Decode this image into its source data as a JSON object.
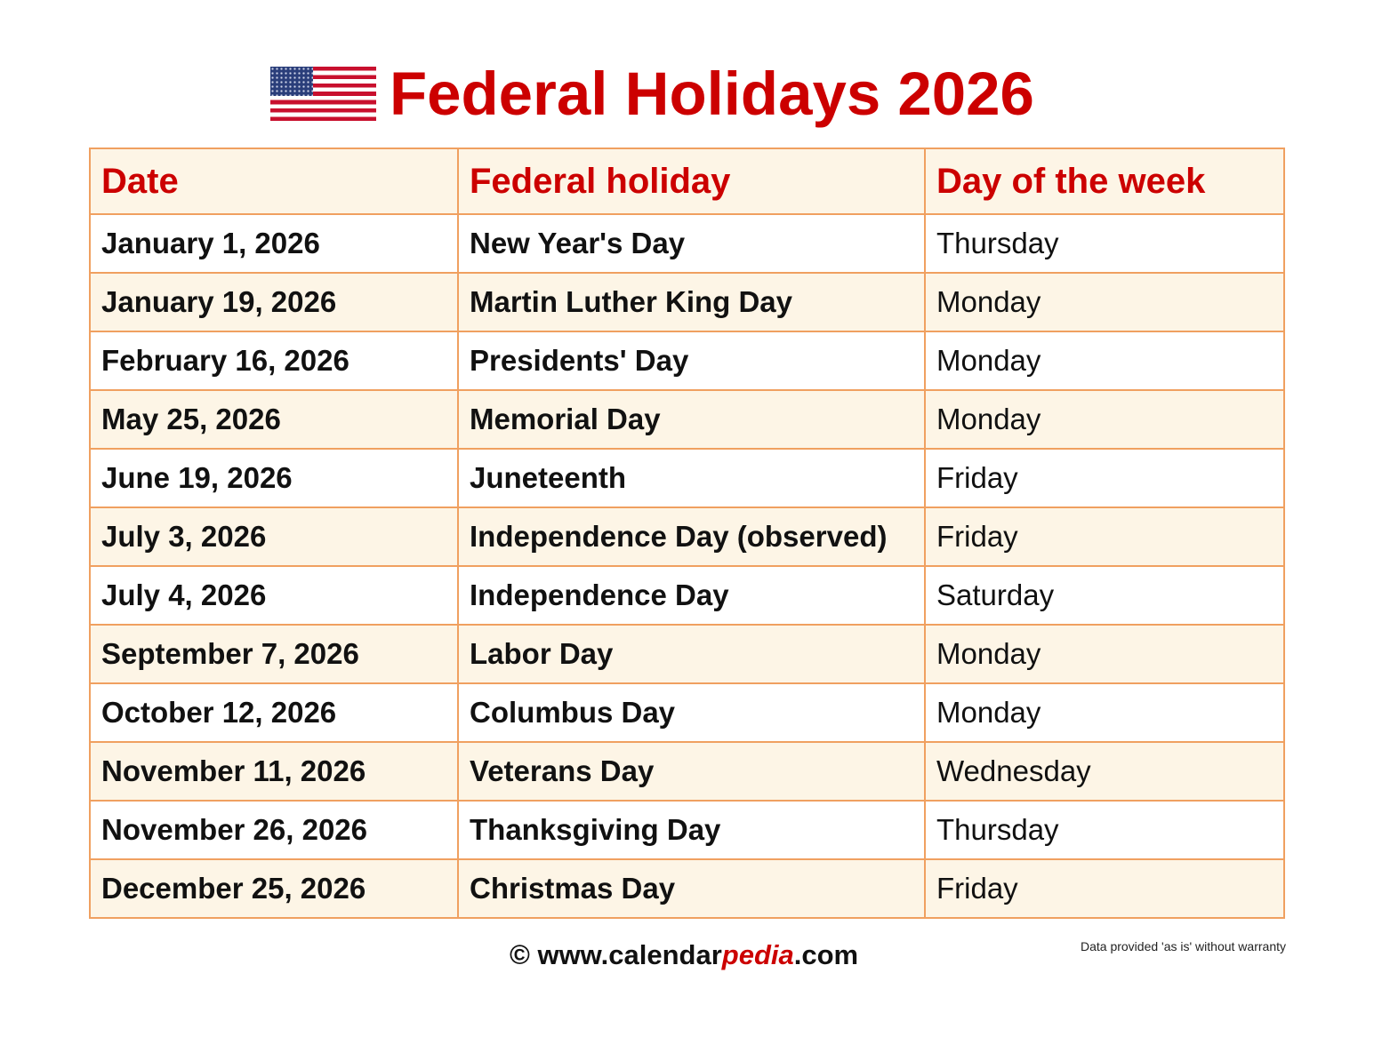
{
  "title": "Federal Holidays 2026",
  "flag_icon": "us-flag-icon",
  "colors": {
    "accent": "#cc0000",
    "border": "#f0a060",
    "row_fill": "#fdf5e6"
  },
  "table": {
    "headers": [
      "Date",
      "Federal holiday",
      "Day of the week"
    ],
    "rows": [
      [
        "January 1, 2026",
        "New Year's Day",
        "Thursday"
      ],
      [
        "January 19, 2026",
        "Martin Luther King Day",
        "Monday"
      ],
      [
        "February 16, 2026",
        "Presidents' Day",
        "Monday"
      ],
      [
        "May 25, 2026",
        "Memorial Day",
        "Monday"
      ],
      [
        "June 19, 2026",
        "Juneteenth",
        "Friday"
      ],
      [
        "July 3, 2026",
        "Independence Day (observed)",
        "Friday"
      ],
      [
        "July 4, 2026",
        "Independence Day",
        "Saturday"
      ],
      [
        "September 7, 2026",
        "Labor Day",
        "Monday"
      ],
      [
        "October 12, 2026",
        "Columbus Day",
        "Monday"
      ],
      [
        "November 11, 2026",
        "Veterans Day",
        "Wednesday"
      ],
      [
        "November 26, 2026",
        "Thanksgiving Day",
        "Thursday"
      ],
      [
        "December 25, 2026",
        "Christmas Day",
        "Friday"
      ]
    ]
  },
  "footer": {
    "prefix": "© www.calendar",
    "brand": "pedia",
    "suffix": ".com",
    "disclaimer": "Data provided 'as is' without warranty"
  }
}
